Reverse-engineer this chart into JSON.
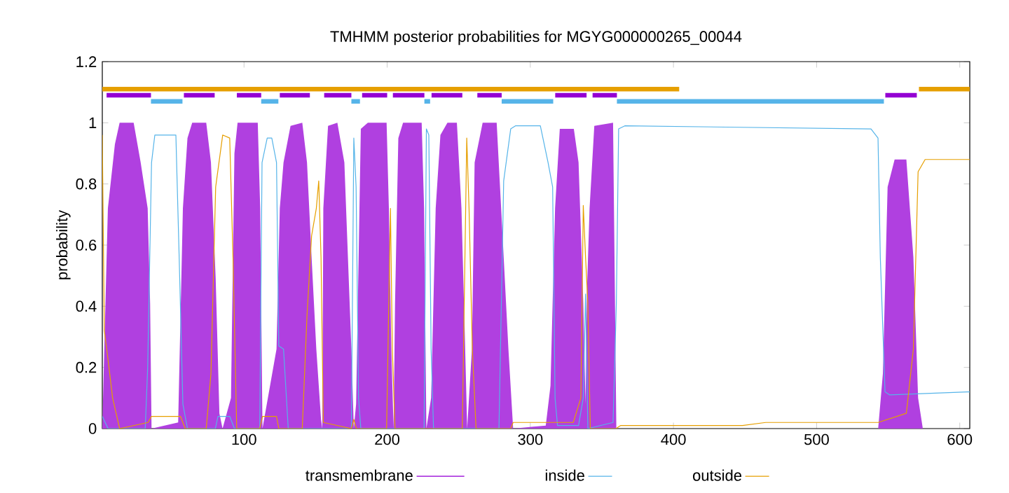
{
  "chart_data": {
    "type": "line",
    "title": "TMHMM posterior probabilities for MGYG000000265_00044",
    "ylabel": "probability",
    "xlim": [
      1,
      607
    ],
    "ylim": [
      0,
      1.2
    ],
    "xticks": [
      100,
      200,
      300,
      400,
      500,
      600
    ],
    "yticks": [
      0,
      0.2,
      0.4,
      0.6,
      0.8,
      1,
      1.2
    ],
    "legend": "bottom",
    "grid": false,
    "series": [
      {
        "name": "transmembrane",
        "type": "area",
        "color": "#b040e0",
        "x": [
          1,
          2.7,
          4.9,
          9.8,
          13.1,
          22.9,
          27.8,
          32.7,
          34.4,
          35.4,
          54,
          57.3,
          60.5,
          63.8,
          73.6,
          76.9,
          80.2,
          82.8,
          85,
          90.9,
          93.3,
          95.5,
          109.6,
          111.3,
          112.9,
          122.7,
          125,
          127.6,
          132.5,
          140.7,
          144,
          147.2,
          150.5,
          153.8,
          154.7,
          155.4,
          158.7,
          165.2,
          170.1,
          175,
          176.7,
          178.3,
          181.6,
          186.5,
          199.6,
          201.2,
          202.9,
          204.5,
          205.5,
          207.8,
          211.1,
          224.1,
          225.8,
          227.4,
          230.7,
          233.9,
          237.2,
          242.1,
          248.7,
          251.9,
          254.5,
          255.9,
          259.2,
          261.1,
          266.7,
          276.5,
          281.4,
          284.7,
          288,
          310.8,
          314.1,
          317.3,
          320.6,
          330.4,
          333.7,
          337,
          338.6,
          339.5,
          341.4,
          344.7,
          357.8,
          360.1,
          543,
          546.3,
          549.6,
          554.5,
          562.7,
          567.6,
          570.9,
          574.2,
          607
        ],
        "values": [
          0,
          0.32,
          0.72,
          0.93,
          1.0,
          1.0,
          0.87,
          0.72,
          0.41,
          0,
          0.02,
          0.72,
          0.95,
          1.0,
          1.0,
          0.87,
          0.49,
          0.05,
          0,
          0.1,
          0.9,
          1.0,
          1.0,
          0.72,
          0,
          0.26,
          0.72,
          0.87,
          0.99,
          1.0,
          0.87,
          0.56,
          0.26,
          0.03,
          0,
          0.72,
          0.99,
          1.0,
          0.87,
          0.26,
          0,
          0.08,
          0.98,
          1.0,
          1.0,
          0.72,
          0.26,
          0,
          0.41,
          0.95,
          1.0,
          1.0,
          0.72,
          0,
          0.1,
          0.72,
          0.96,
          1.0,
          1.0,
          0.72,
          0.26,
          0,
          0.26,
          0.87,
          1.0,
          1.0,
          0.56,
          0.26,
          0,
          0.01,
          0.14,
          0.72,
          0.98,
          0.98,
          0.87,
          0.41,
          0.08,
          0.44,
          0.72,
          0.99,
          1.0,
          0,
          0,
          0.18,
          0.79,
          0.88,
          0.88,
          0.56,
          0.1,
          0,
          0
        ]
      },
      {
        "name": "inside",
        "color": "#56b4e9",
        "x": [
          1,
          5,
          31,
          32.7,
          35.4,
          37.7,
          52.4,
          54.7,
          57.3,
          60.5,
          80,
          81.8,
          90,
          93.3,
          111,
          112.6,
          116.2,
          119.4,
          122.7,
          124.3,
          127.6,
          130.9,
          175,
          176.7,
          178.3,
          180,
          181.6,
          225.8,
          227.4,
          229.1,
          230.7,
          232.4,
          278.1,
          281.4,
          286.3,
          289.6,
          307,
          312.4,
          315.6,
          317.3,
          319,
          333.7,
          337,
          338.6,
          340.2,
          357.8,
          360.1,
          361.7,
          366,
          538,
          542.9,
          544.5,
          547.8,
          551.1,
          605.3,
          607
        ],
        "values": [
          0.04,
          0,
          0,
          0.2,
          0.87,
          0.96,
          0.96,
          0.56,
          0.08,
          0,
          0,
          0.04,
          0.04,
          0,
          0,
          0.87,
          0.95,
          0.95,
          0.87,
          0.27,
          0.26,
          0,
          0,
          0.95,
          0.79,
          0.1,
          0,
          0,
          0.98,
          0.96,
          0.26,
          0,
          0,
          0.81,
          0.98,
          0.99,
          0.99,
          0.87,
          0.79,
          0.1,
          0.01,
          0.01,
          0.1,
          0.44,
          0,
          0.02,
          0.41,
          0.98,
          0.99,
          0.98,
          0.95,
          0.56,
          0.12,
          0.11,
          0.12,
          0.12
        ]
      },
      {
        "name": "outside",
        "color": "#e69f00",
        "x": [
          1,
          2.4,
          4.9,
          8.2,
          13.1,
          33,
          35.4,
          55.6,
          58.9,
          73.6,
          76.9,
          80.2,
          85.1,
          90,
          92.3,
          94.9,
          111,
          112.9,
          122.7,
          124.3,
          140.7,
          144,
          147.2,
          150.5,
          152.2,
          153.8,
          155.4,
          175,
          176.7,
          178.5,
          199.6,
          202.3,
          203.6,
          205.5,
          252.5,
          255.6,
          257.2,
          259.5,
          262.1,
          286.3,
          288,
          330,
          335.3,
          337,
          338.6,
          340.2,
          341.9,
          359.8,
          363,
          448.2,
          464.5,
          543,
          562.7,
          567.6,
          570.9,
          575.8,
          607
        ],
        "values": [
          0.96,
          0.32,
          0.23,
          0.1,
          0,
          0.02,
          0.04,
          0.04,
          0,
          0,
          0.18,
          0.79,
          0.96,
          0.95,
          0.56,
          0,
          0,
          0.04,
          0.04,
          0,
          0,
          0.37,
          0.63,
          0.72,
          0.81,
          0.56,
          0.02,
          0,
          0.03,
          0,
          0,
          0.72,
          0.26,
          0,
          0,
          0.95,
          0.72,
          0.26,
          0,
          0,
          0.02,
          0.02,
          0.1,
          0.73,
          0.56,
          0.41,
          0,
          0,
          0.01,
          0.01,
          0.02,
          0.02,
          0.05,
          0.26,
          0.84,
          0.88,
          0.88
        ]
      },
      {
        "color": "#e69f00",
        "x": [
          1,
          404,
          487,
          571.5,
          607
        ],
        "values": [
          1.11,
          1.11,
          null,
          1.11,
          1.11
        ]
      },
      {
        "color": "#56b4e9",
        "x": [
          35,
          57,
          84,
          112,
          124,
          150,
          175,
          181,
          203,
          226,
          230,
          255,
          280,
          316,
          338,
          360.5,
          547
        ],
        "values": [
          1.07,
          1.07,
          null,
          1.07,
          1.07,
          null,
          1.07,
          1.07,
          null,
          1.07,
          1.07,
          null,
          1.07,
          1.07,
          null,
          1.07,
          1.07
        ]
      },
      {
        "color": "#9400d3",
        "x": [
          4,
          35,
          46,
          58,
          79.5,
          87,
          95,
          112,
          118,
          125,
          146,
          151,
          156,
          175,
          178,
          182.5,
          200,
          202,
          204,
          226,
          228,
          231,
          252.5,
          258,
          263,
          280,
          298,
          317.4,
          339.3,
          341,
          343.5,
          360.5,
          450,
          548,
          570
        ],
        "values": [
          1.09,
          1.09,
          null,
          1.09,
          1.09,
          null,
          1.09,
          1.09,
          null,
          1.09,
          1.09,
          null,
          1.09,
          1.09,
          null,
          1.09,
          1.09,
          null,
          1.09,
          1.09,
          null,
          1.09,
          1.09,
          null,
          1.09,
          1.09,
          null,
          1.09,
          1.09,
          null,
          1.09,
          1.09,
          null,
          1.09,
          1.09
        ]
      }
    ]
  }
}
